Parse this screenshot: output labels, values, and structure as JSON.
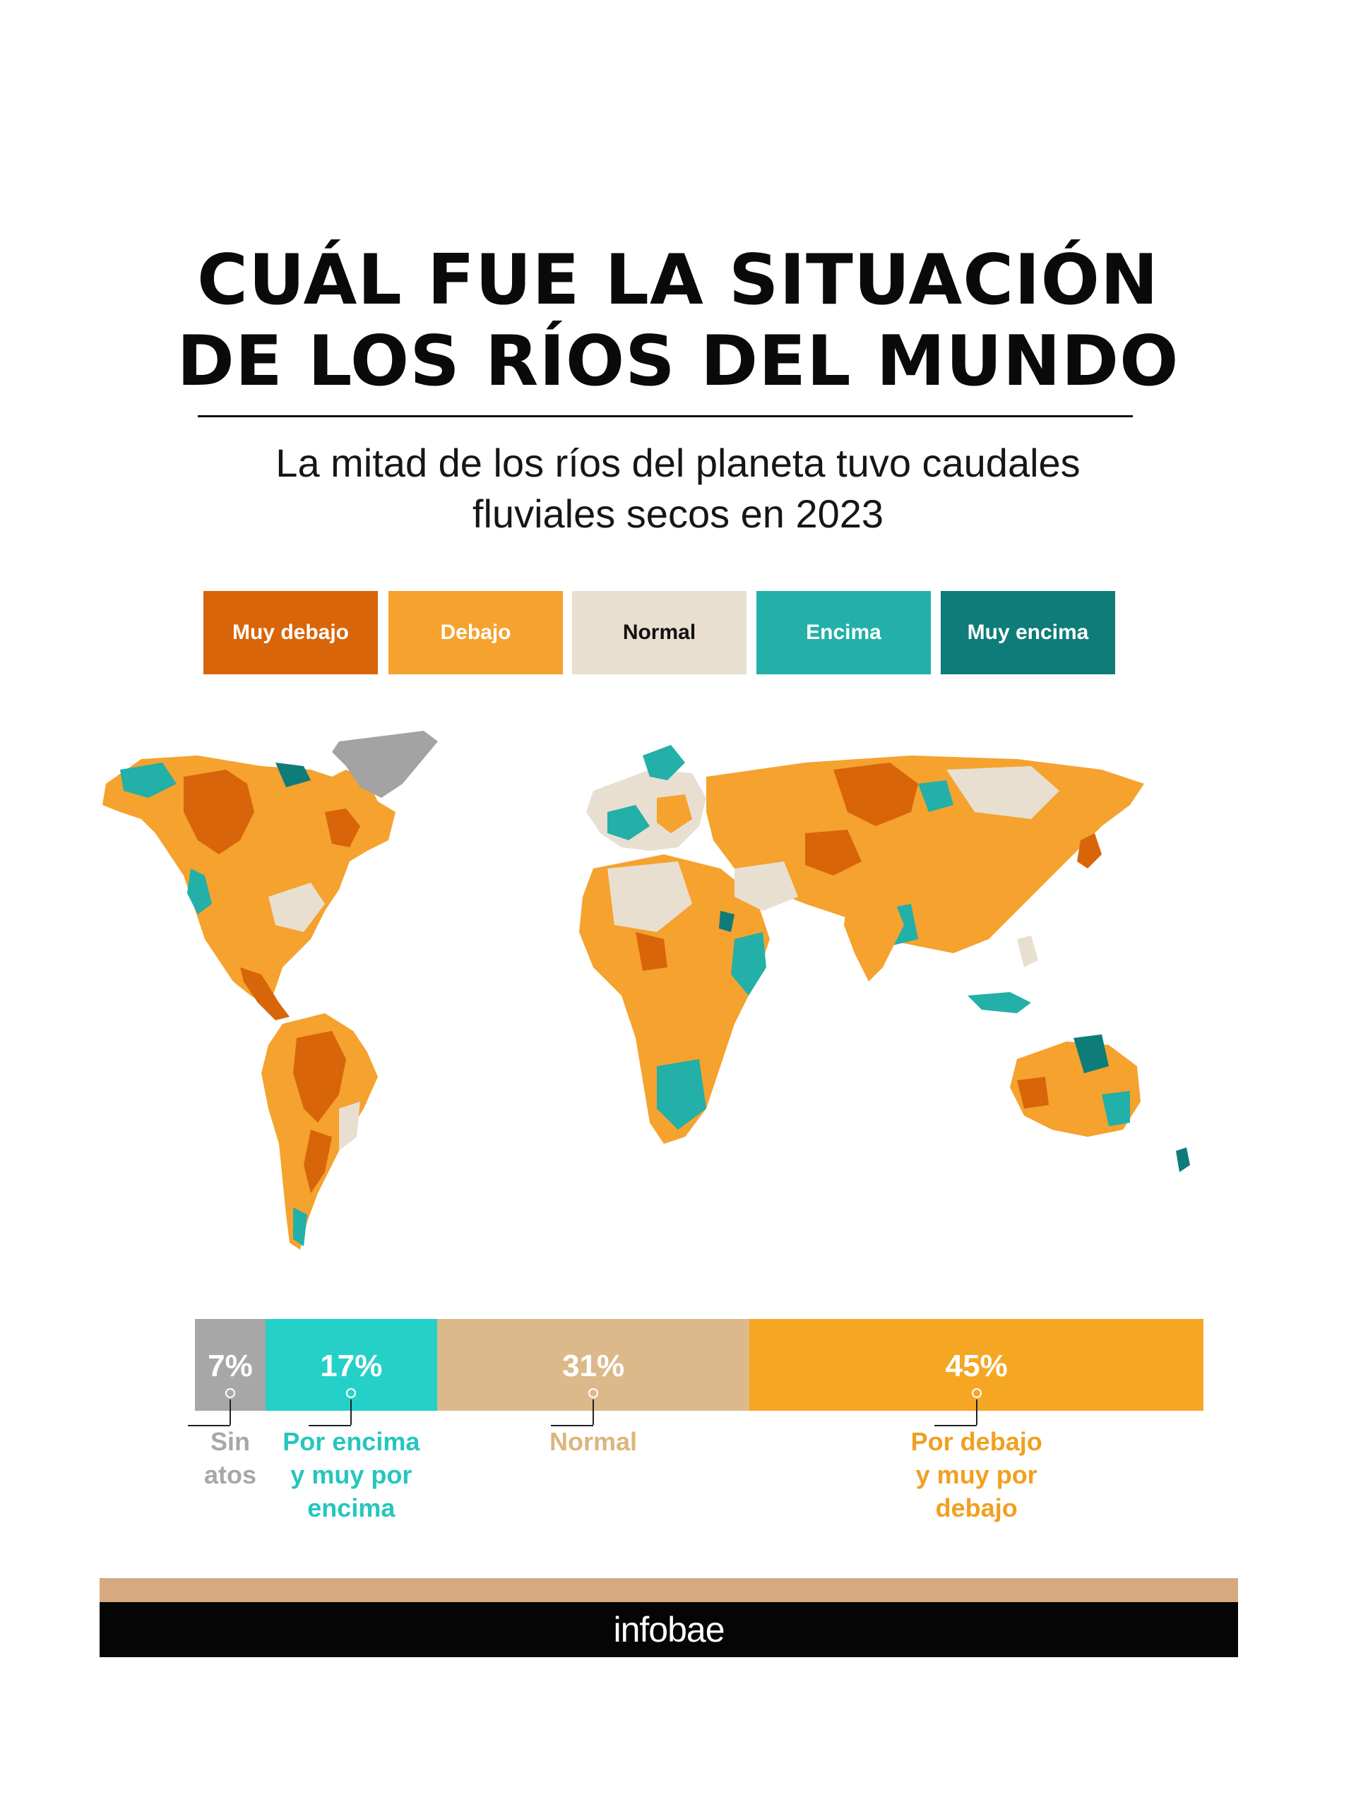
{
  "header": {
    "title_line1": "CUÁL FUE LA SITUACIÓN",
    "title_line2": "DE LOS RÍOS DEL MUNDO",
    "subtitle_line1": "La mitad de los ríos del planeta tuvo caudales",
    "subtitle_line2": "fluviales secos en 2023"
  },
  "legend": {
    "items": [
      {
        "label": "Muy debajo",
        "color": "#d8650a",
        "text_color": "#ffffff"
      },
      {
        "label": "Debajo",
        "color": "#f5a22e",
        "text_color": "#ffffff"
      },
      {
        "label": "Normal",
        "color": "#e8dfd1",
        "text_color": "#111111"
      },
      {
        "label": "Encima",
        "color": "#22b0a8",
        "text_color": "#ffffff"
      },
      {
        "label": "Muy encima",
        "color": "#0e7c79",
        "text_color": "#ffffff"
      }
    ]
  },
  "map": {
    "colors": {
      "muy_debajo": "#d8650a",
      "debajo": "#f5a22e",
      "normal": "#e8dfd1",
      "encima": "#22b0a8",
      "muy_encima": "#0e7c79",
      "sin_datos": "#a3a3a3"
    }
  },
  "chart_data": {
    "type": "bar",
    "orientation": "horizontal-stacked",
    "categories": [
      "Sin atos",
      "Por encima y muy por encima",
      "Normal",
      "Por debajo y muy por debajo"
    ],
    "values": [
      7,
      17,
      31,
      45
    ],
    "value_labels": [
      "7%",
      "17%",
      "31%",
      "45%"
    ],
    "unit": "%",
    "colors": [
      "#a7a7a7",
      "#25d0c8",
      "#dcb98a",
      "#f5a623"
    ],
    "label_colors": [
      "#a7a7a7",
      "#25c6be",
      "#dcb47e",
      "#f0a020"
    ],
    "label_lines": [
      [
        "Sin",
        "atos"
      ],
      [
        "Por encima",
        "y muy por",
        "encima"
      ],
      [
        "Normal"
      ],
      [
        "Por debajo",
        "y muy por",
        "debajo"
      ]
    ]
  },
  "footer": {
    "brand": "infobae",
    "accent_color": "#d6a981"
  }
}
